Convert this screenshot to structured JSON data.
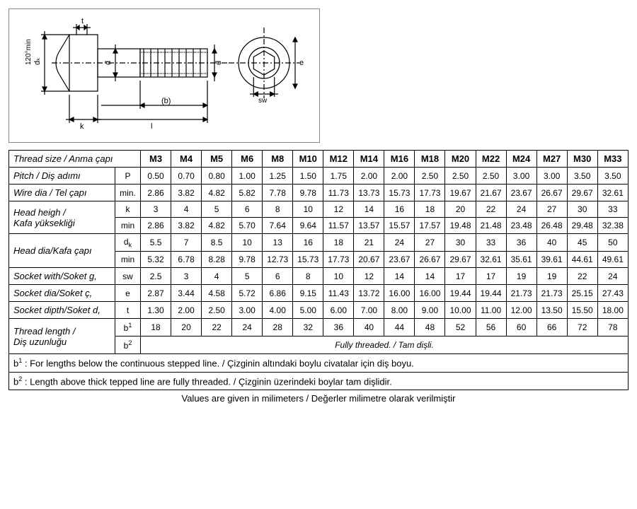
{
  "diagram": {
    "angle_label": "120°min",
    "dk": "dₖ",
    "t": "t",
    "d1": "d",
    "d2": "d",
    "b": "(b)",
    "l": "l",
    "k": "k",
    "sw": "sw",
    "e": "e"
  },
  "table": {
    "header_label": "Thread size  / Anma çapı",
    "sizes": [
      "M3",
      "M4",
      "M5",
      "M6",
      "M8",
      "M10",
      "M12",
      "M14",
      "M16",
      "M18",
      "M20",
      "M22",
      "M24",
      "M27",
      "M30",
      "M33"
    ],
    "rows": [
      {
        "label": "Pitch / Diş adımı",
        "sym": "P",
        "vals": [
          "0.50",
          "0.70",
          "0.80",
          "1.00",
          "1.25",
          "1.50",
          "1.75",
          "2.00",
          "2.00",
          "2.50",
          "2.50",
          "2.50",
          "3.00",
          "3.00",
          "3.50",
          "3.50"
        ]
      },
      {
        "label": "Wire dia / Tel çapı",
        "sym": "min.",
        "vals": [
          "2.86",
          "3.82",
          "4.82",
          "5.82",
          "7.78",
          "9.78",
          "11.73",
          "13.73",
          "15.73",
          "17.73",
          "19.67",
          "21.67",
          "23.67",
          "26.67",
          "29.67",
          "32.61"
        ]
      },
      {
        "label": "Head heigh /\nKafa yüksekliği",
        "sym": "k",
        "vals": [
          "3",
          "4",
          "5",
          "6",
          "8",
          "10",
          "12",
          "14",
          "16",
          "18",
          "20",
          "22",
          "24",
          "27",
          "30",
          "33"
        ]
      },
      {
        "label": "",
        "sym": "min",
        "vals": [
          "2.86",
          "3.82",
          "4.82",
          "5.70",
          "7.64",
          "9.64",
          "11.57",
          "13.57",
          "15.57",
          "17.57",
          "19.48",
          "21.48",
          "23.48",
          "26.48",
          "29.48",
          "32.38"
        ]
      },
      {
        "label": "Head dia/Kafa çapı",
        "sym": "dₖ",
        "vals": [
          "5.5",
          "7",
          "8.5",
          "10",
          "13",
          "16",
          "18",
          "21",
          "24",
          "27",
          "30",
          "33",
          "36",
          "40",
          "45",
          "50"
        ]
      },
      {
        "label": "",
        "sym": "min",
        "vals": [
          "5.32",
          "6.78",
          "8.28",
          "9.78",
          "12.73",
          "15.73",
          "17.73",
          "20.67",
          "23.67",
          "26.67",
          "29.67",
          "32.61",
          "35.61",
          "39.61",
          "44.61",
          "49.61"
        ]
      },
      {
        "label": "Socket with/Soket g,",
        "sym": "sw",
        "vals": [
          "2.5",
          "3",
          "4",
          "5",
          "6",
          "8",
          "10",
          "12",
          "14",
          "14",
          "17",
          "17",
          "19",
          "19",
          "22",
          "24"
        ]
      },
      {
        "label": "Socket dia/Soket ç,",
        "sym": "e",
        "vals": [
          "2.87",
          "3.44",
          "4.58",
          "5.72",
          "6.86",
          "9.15",
          "11.43",
          "13.72",
          "16.00",
          "16.00",
          "19.44",
          "19.44",
          "21.73",
          "21.73",
          "25.15",
          "27.43"
        ]
      },
      {
        "label": "Socket dipth/Soket d,",
        "sym": "t",
        "vals": [
          "1.30",
          "2.00",
          "2.50",
          "3.00",
          "4.00",
          "5.00",
          "6.00",
          "7.00",
          "8.00",
          "9.00",
          "10.00",
          "11.00",
          "12.00",
          "13.50",
          "15.50",
          "18.00"
        ]
      },
      {
        "label": "Thread length /\nDiş uzunluğu",
        "sym": "b¹",
        "vals": [
          "18",
          "20",
          "22",
          "24",
          "28",
          "32",
          "36",
          "40",
          "44",
          "48",
          "52",
          "56",
          "60",
          "66",
          "72",
          "78"
        ]
      }
    ],
    "b2_sym": "b²",
    "fully_threaded": "Fully threaded. / Tam dişli.",
    "footnote1": "b¹ : For lengths below the continuous stepped line. / Çizginin altındaki boylu civatalar için diş  boyu.",
    "footnote2": "b² : Length above thick tepped  line are fully threaded. / Çizginin üzerindeki boylar tam dişlidir.",
    "caption": "Values are given in milimeters / Değerler milimetre olarak verilmiştir"
  },
  "colors": {
    "border": "#000000",
    "bg": "#ffffff"
  }
}
